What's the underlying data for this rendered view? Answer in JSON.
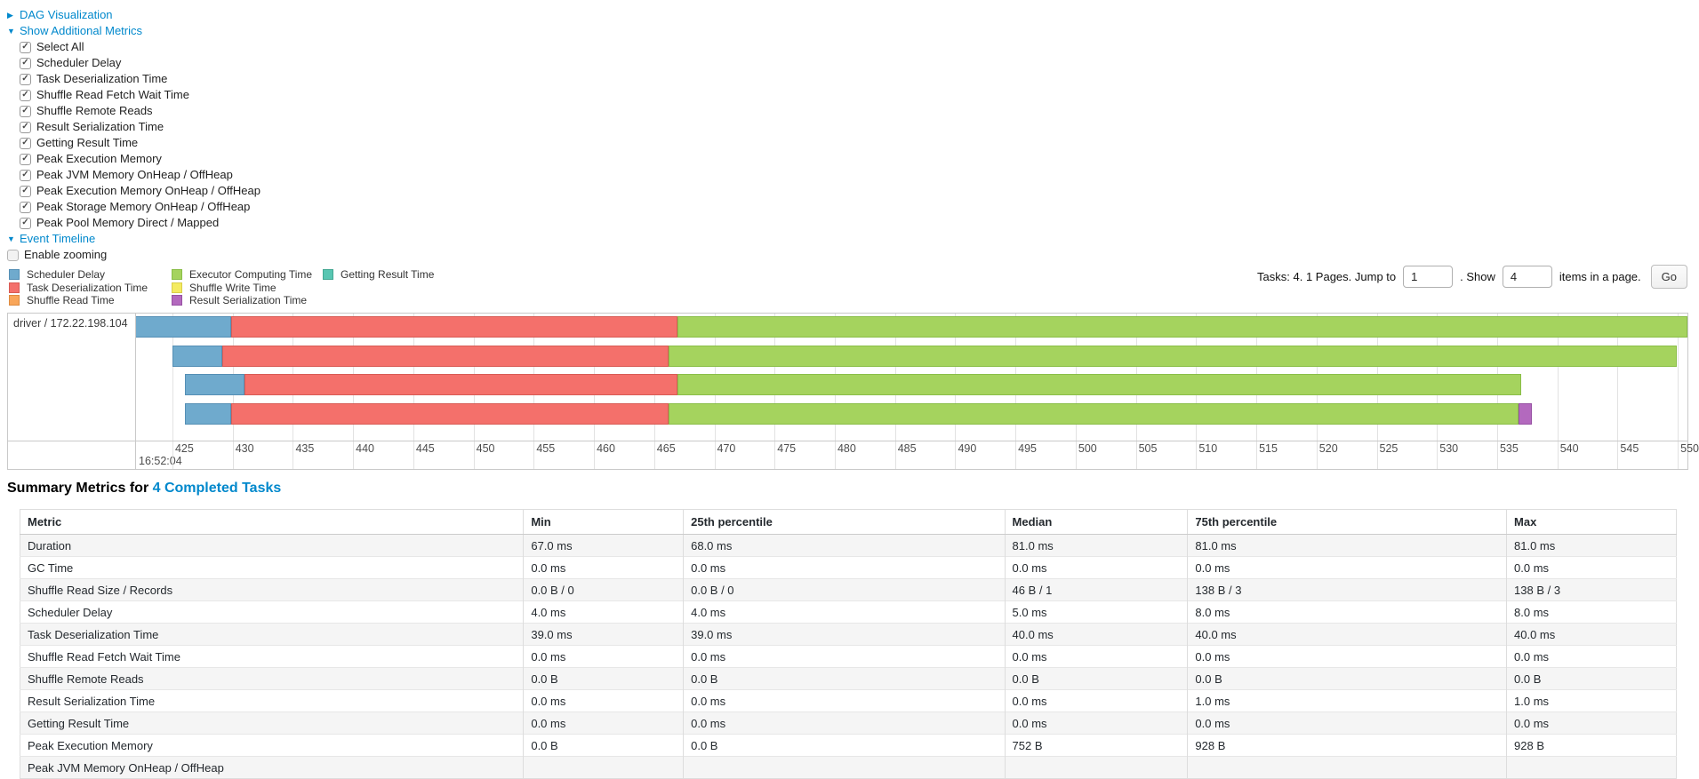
{
  "controls": {
    "dag_label": "DAG Visualization",
    "metrics_label": "Show Additional Metrics",
    "checkboxes": [
      {
        "label": "Select All",
        "checked": true
      },
      {
        "label": "Scheduler Delay",
        "checked": true
      },
      {
        "label": "Task Deserialization Time",
        "checked": true
      },
      {
        "label": "Shuffle Read Fetch Wait Time",
        "checked": true
      },
      {
        "label": "Shuffle Remote Reads",
        "checked": true
      },
      {
        "label": "Result Serialization Time",
        "checked": true
      },
      {
        "label": "Getting Result Time",
        "checked": true
      },
      {
        "label": "Peak Execution Memory",
        "checked": true
      },
      {
        "label": "Peak JVM Memory OnHeap / OffHeap",
        "checked": true
      },
      {
        "label": "Peak Execution Memory OnHeap / OffHeap",
        "checked": true
      },
      {
        "label": "Peak Storage Memory OnHeap / OffHeap",
        "checked": true
      },
      {
        "label": "Peak Pool Memory Direct / Mapped",
        "checked": true
      }
    ],
    "event_timeline_label": "Event Timeline",
    "enable_zooming_label": "Enable zooming",
    "enable_zooming_checked": false
  },
  "legend": {
    "columns": [
      [
        {
          "key": "scheduler_delay",
          "label": "Scheduler Delay"
        },
        {
          "key": "task_deserialization",
          "label": "Task Deserialization Time"
        },
        {
          "key": "shuffle_read",
          "label": "Shuffle Read Time"
        }
      ],
      [
        {
          "key": "executor_computing",
          "label": "Executor Computing Time"
        },
        {
          "key": "shuffle_write",
          "label": "Shuffle Write Time"
        },
        {
          "key": "result_serialization",
          "label": "Result Serialization Time"
        }
      ],
      [
        {
          "key": "getting_result",
          "label": "Getting Result Time"
        }
      ]
    ]
  },
  "pagination": {
    "tasks_text": "Tasks: 4. 1 Pages. Jump to",
    "page_value": "1",
    "show_text": ". Show",
    "page_size_value": "4",
    "items_text": "items in a page.",
    "go_label": "Go"
  },
  "chart_data": {
    "type": "timeline",
    "row_label": "driver / 172.22.198.104",
    "axis": {
      "domain": [
        421.9,
        550.8
      ],
      "tick_start": 425,
      "tick_step": 5,
      "tick_end": 550,
      "start_time_label": "16:52:04",
      "units": "ms offsets within second 16:52:04"
    },
    "colors": {
      "scheduler_delay": "#6FAACD",
      "task_deserialization": "#F4706B",
      "shuffle_read": "#F9A65A",
      "executor_computing": "#A5D35E",
      "shuffle_write": "#F4EB61",
      "result_serialization": "#B369BE",
      "getting_result": "#58C6B2"
    },
    "borders": {
      "scheduler_delay": "#558FB5",
      "task_deserialization": "#D85B55",
      "shuffle_read": "#DD8B41",
      "executor_computing": "#8ABE48",
      "shuffle_write": "#D9CE4A",
      "result_serialization": "#9751A3",
      "getting_result": "#44A893"
    },
    "tasks": [
      {
        "segments": [
          [
            "scheduler_delay",
            421.9,
            429.9
          ],
          [
            "task_deserialization",
            429.9,
            466.9
          ],
          [
            "executor_computing",
            466.9,
            550.8
          ]
        ]
      },
      {
        "segments": [
          [
            "scheduler_delay",
            425.0,
            429.1
          ],
          [
            "task_deserialization",
            429.1,
            466.2
          ],
          [
            "executor_computing",
            466.2,
            549.9
          ]
        ]
      },
      {
        "segments": [
          [
            "scheduler_delay",
            426.0,
            431.0
          ],
          [
            "task_deserialization",
            431.0,
            466.9
          ],
          [
            "executor_computing",
            466.9,
            537.0
          ]
        ]
      },
      {
        "segments": [
          [
            "scheduler_delay",
            426.0,
            429.9
          ],
          [
            "task_deserialization",
            429.9,
            466.2
          ],
          [
            "executor_computing",
            466.2,
            536.8
          ],
          [
            "result_serialization",
            536.8,
            537.9
          ]
        ]
      }
    ]
  },
  "summary": {
    "title_prefix": "Summary Metrics for",
    "title_link": "4 Completed Tasks",
    "table": {
      "headers": [
        "Metric",
        "Min",
        "25th percentile",
        "Median",
        "75th percentile",
        "Max"
      ],
      "col_widths_pct": [
        30.4,
        9.65,
        19.4,
        11.05,
        19.25,
        10.25
      ],
      "rows": [
        {
          "metric": "Duration",
          "values": [
            "67.0 ms",
            "68.0 ms",
            "81.0 ms",
            "81.0 ms",
            "81.0 ms"
          ]
        },
        {
          "metric": "GC Time",
          "values": [
            "0.0 ms",
            "0.0 ms",
            "0.0 ms",
            "0.0 ms",
            "0.0 ms"
          ]
        },
        {
          "metric": "Shuffle Read Size / Records",
          "values": [
            "0.0 B / 0",
            "0.0 B / 0",
            "46 B / 1",
            "138 B / 3",
            "138 B / 3"
          ]
        },
        {
          "metric": "Scheduler Delay",
          "values": [
            "4.0 ms",
            "4.0 ms",
            "5.0 ms",
            "8.0 ms",
            "8.0 ms"
          ]
        },
        {
          "metric": "Task Deserialization Time",
          "values": [
            "39.0 ms",
            "39.0 ms",
            "40.0 ms",
            "40.0 ms",
            "40.0 ms"
          ]
        },
        {
          "metric": "Shuffle Read Fetch Wait Time",
          "values": [
            "0.0 ms",
            "0.0 ms",
            "0.0 ms",
            "0.0 ms",
            "0.0 ms"
          ]
        },
        {
          "metric": "Shuffle Remote Reads",
          "values": [
            "0.0 B",
            "0.0 B",
            "0.0 B",
            "0.0 B",
            "0.0 B"
          ]
        },
        {
          "metric": "Result Serialization Time",
          "values": [
            "0.0 ms",
            "0.0 ms",
            "0.0 ms",
            "1.0 ms",
            "1.0 ms"
          ]
        },
        {
          "metric": "Getting Result Time",
          "values": [
            "0.0 ms",
            "0.0 ms",
            "0.0 ms",
            "0.0 ms",
            "0.0 ms"
          ]
        },
        {
          "metric": "Peak Execution Memory",
          "values": [
            "0.0 B",
            "0.0 B",
            "752 B",
            "928 B",
            "928 B"
          ]
        },
        {
          "metric": "Peak JVM Memory OnHeap / OffHeap",
          "values": [
            "",
            "",
            "",
            "",
            ""
          ]
        }
      ]
    }
  }
}
